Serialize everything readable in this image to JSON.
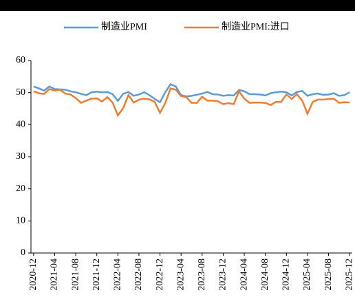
{
  "chart_data": {
    "type": "line",
    "categories": [
      "2020-12",
      null,
      null,
      null,
      "2021-04",
      null,
      null,
      null,
      "2021-08",
      null,
      null,
      null,
      "2021-12",
      null,
      null,
      null,
      "2022-04",
      null,
      null,
      null,
      "2022-08",
      null,
      null,
      null,
      "2022-12",
      null,
      null,
      null,
      "2023-04",
      null,
      null,
      null,
      "2023-08",
      null,
      null,
      null,
      "2023-12",
      null,
      null,
      null,
      "2024-04",
      null,
      null,
      null,
      "2024-08",
      null,
      null,
      null,
      "2024-12",
      null,
      null,
      null,
      "2025-04",
      null,
      null,
      null,
      "2025-08",
      null,
      null,
      null,
      "2025-12"
    ],
    "series": [
      {
        "name": "制造业PMI",
        "color": "#5b9bd5",
        "values": [
          51.9,
          51.3,
          50.6,
          51.9,
          51.1,
          51.0,
          50.9,
          50.4,
          50.1,
          49.6,
          49.2,
          50.1,
          50.3,
          50.1,
          50.2,
          49.5,
          47.4,
          49.6,
          50.2,
          49.0,
          49.4,
          50.1,
          49.2,
          48.0,
          47.0,
          50.1,
          52.6,
          51.9,
          49.2,
          48.8,
          49.0,
          49.3,
          49.7,
          50.2,
          49.5,
          49.4,
          49.0,
          49.2,
          49.1,
          50.8,
          50.4,
          49.5,
          49.5,
          49.4,
          49.1,
          49.8,
          50.1,
          50.3,
          50.1,
          49.1,
          50.2,
          50.5,
          49.0,
          49.5,
          49.7,
          49.3,
          49.4,
          49.8,
          49.0,
          49.2,
          50.1
        ]
      },
      {
        "name": "制造业PMI:进口",
        "color": "#ed7d31",
        "values": [
          50.4,
          49.8,
          49.6,
          51.1,
          50.6,
          50.9,
          49.7,
          49.4,
          48.3,
          46.8,
          47.5,
          48.1,
          48.2,
          47.2,
          48.6,
          46.9,
          42.9,
          45.1,
          49.2,
          46.9,
          47.8,
          48.1,
          47.9,
          47.1,
          43.7,
          46.7,
          51.3,
          50.9,
          48.9,
          48.6,
          46.8,
          46.8,
          48.7,
          47.5,
          47.5,
          47.3,
          46.4,
          46.7,
          46.4,
          50.4,
          48.1,
          46.8,
          46.9,
          46.9,
          46.8,
          46.1,
          47.1,
          47.1,
          49.4,
          48.0,
          49.5,
          47.5,
          43.4,
          47.1,
          47.8,
          47.8,
          48.0,
          48.1,
          46.8,
          47.0,
          46.9
        ]
      }
    ],
    "ylim": [
      0,
      60
    ],
    "yticks": [
      0,
      10,
      20,
      30,
      40,
      50,
      60
    ],
    "grid": false
  }
}
